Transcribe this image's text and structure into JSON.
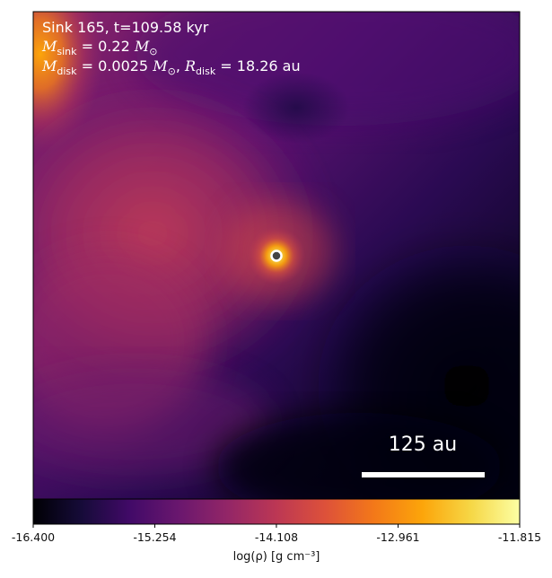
{
  "chart_data": {
    "type": "heatmap",
    "title_line1": "Sink 165, t=109.58 kyr",
    "sink_mass": {
      "symbol": "M",
      "sub": "sink",
      "value": "= 0.22",
      "unit": "M",
      "unit_sub": "⊙"
    },
    "disk": {
      "mass_symbol": "M",
      "mass_sub": "disk",
      "mass_value": "= 0.0025",
      "mass_unit": "M",
      "mass_unit_sub": "⊙",
      "separator": ",",
      "radius_symbol": "R",
      "radius_sub": "disk",
      "radius_value": "= 18.26",
      "radius_unit": "au"
    },
    "scale_bar_label": "125 au",
    "colormap": "inferno",
    "colorbar": {
      "label": "log(ρ) [g cm⁻³]",
      "range": [
        -16.4,
        -11.815
      ],
      "ticks": [
        "-16.400",
        "-15.254",
        "-14.108",
        "-12.961",
        "-11.815"
      ],
      "tick_values": [
        -16.4,
        -15.254,
        -14.108,
        -12.961,
        -11.815
      ]
    },
    "sink_marker": {
      "color_fill": "#444444",
      "color_edge": "#ffffff"
    }
  }
}
